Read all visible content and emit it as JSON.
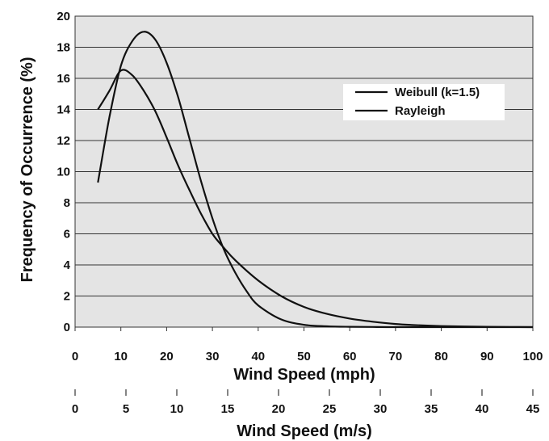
{
  "chart_data": {
    "type": "line",
    "title": "",
    "xlabel": "Wind Speed (mph)",
    "ylabel": "Frequency of Occurrence (%)",
    "xlim": [
      0,
      100
    ],
    "ylim": [
      0,
      20
    ],
    "x_ticks": [
      0,
      10,
      20,
      30,
      40,
      50,
      60,
      70,
      80,
      90,
      100
    ],
    "y_ticks": [
      0,
      2,
      4,
      6,
      8,
      10,
      12,
      14,
      16,
      18,
      20
    ],
    "grid": "horizontal",
    "legend_position": "top-right",
    "secondary_x_axis": {
      "label": "Wind Speed (m/s)",
      "ticks": [
        0,
        5,
        10,
        15,
        20,
        25,
        30,
        35,
        40,
        45
      ]
    },
    "series": [
      {
        "name": "Weibull (k=1.5)",
        "x": [
          5,
          7.5,
          10,
          12.5,
          15,
          17.5,
          20,
          22.5,
          25,
          27.5,
          30,
          32.5,
          35,
          40,
          45,
          50,
          55,
          60,
          65,
          70,
          75,
          80,
          85,
          90,
          95,
          100
        ],
        "y": [
          14.0,
          15.2,
          16.5,
          16.2,
          15.2,
          13.9,
          12.2,
          10.4,
          8.8,
          7.3,
          6.0,
          5.1,
          4.3,
          3.0,
          2.0,
          1.3,
          0.85,
          0.55,
          0.35,
          0.2,
          0.12,
          0.07,
          0.04,
          0.02,
          0.01,
          0.0
        ]
      },
      {
        "name": "Rayleigh",
        "x": [
          5,
          7.5,
          10,
          12.5,
          15,
          17.5,
          20,
          22.5,
          25,
          27.5,
          30,
          32.5,
          35,
          37.5,
          40,
          45,
          50,
          55,
          60,
          65,
          70,
          80,
          90,
          100
        ],
        "y": [
          9.3,
          13.5,
          16.8,
          18.4,
          19.0,
          18.5,
          17.0,
          14.8,
          12.1,
          9.4,
          7.0,
          5.0,
          3.5,
          2.3,
          1.4,
          0.5,
          0.15,
          0.05,
          0.02,
          0.01,
          0.0,
          0.0,
          0.0,
          0.0
        ]
      }
    ]
  }
}
